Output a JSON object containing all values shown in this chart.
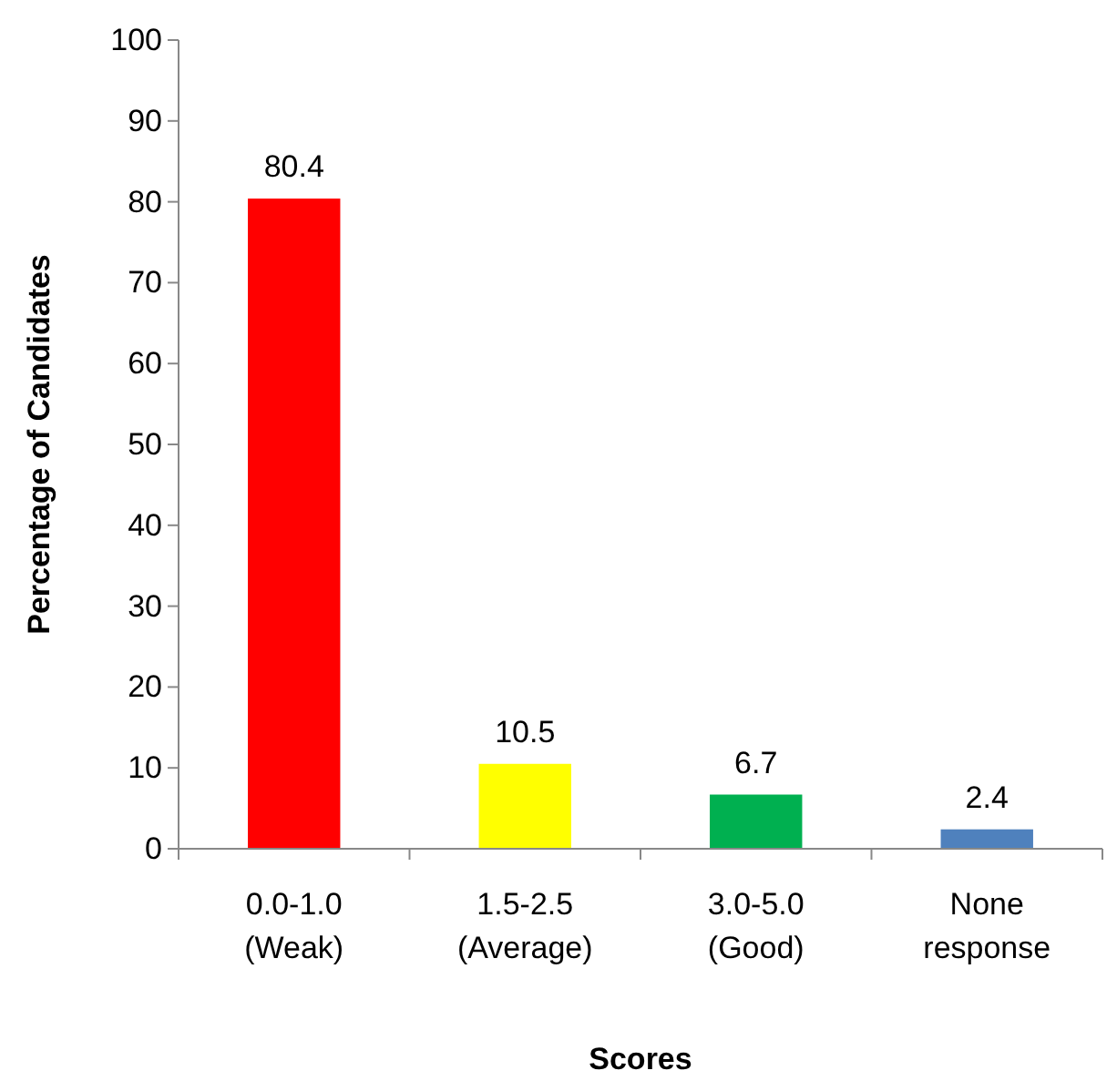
{
  "chart_data": {
    "type": "bar",
    "xlabel": "Scores",
    "ylabel": "Percentage of Candidates",
    "categories": [
      "0.0-1.0\n(Weak)",
      "1.5-2.5\n(Average)",
      "3.0-5.0\n(Good)",
      "None\nresponse"
    ],
    "values": [
      80.4,
      10.5,
      6.7,
      2.4
    ],
    "colors": [
      "#ff0000",
      "#ffff00",
      "#00b050",
      "#4f81bd"
    ],
    "ylim": [
      0,
      100
    ],
    "yticks": [
      0,
      10,
      20,
      30,
      40,
      50,
      60,
      70,
      80,
      90,
      100
    ],
    "data_labels": true,
    "grid": false
  }
}
